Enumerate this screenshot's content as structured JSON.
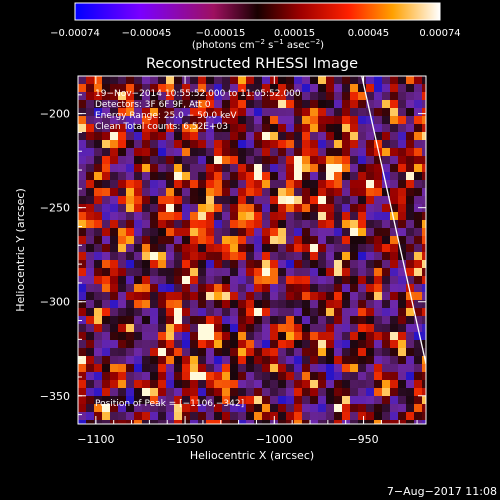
{
  "chart_data": {
    "type": "heatmap",
    "title": "Reconstructed RHESSI Image",
    "xlabel": "Heliocentric X (arcsec)",
    "ylabel": "Heliocentric Y (arcsec)",
    "xlim": [
      -1110,
      -915
    ],
    "ylim": [
      -365,
      -180
    ],
    "x_ticks": [
      -1100,
      -1050,
      -1000,
      -950
    ],
    "x_tick_labels": [
      "−1100",
      "−1050",
      "−1000",
      "−950"
    ],
    "y_ticks": [
      -200,
      -250,
      -300,
      -350
    ],
    "y_tick_labels": [
      "−200",
      "−250",
      "−300",
      "−350"
    ],
    "colorbar": {
      "range": [
        -0.00074,
        0.00074
      ],
      "tick_labels": [
        "−0.00074",
        "−0.00045",
        "−0.00015",
        "0.00015",
        "0.00045",
        "0.00074"
      ],
      "unit_prefix": "(photons cm",
      "unit_exp1": "−2",
      "unit_mid1": " s",
      "unit_exp2": "−1",
      "unit_mid2": " asec",
      "unit_exp3": "−2",
      "unit_suffix": ")"
    },
    "info_lines": [
      "19−Nov−2014 10:55:52.000 to 11:05:52.000",
      "Detectors: 3F 6F 9F, Att 0",
      "Energy Range: 25.0 − 50.0 keV",
      "Clean    Total counts: 6.52E+03"
    ],
    "peak_label": "Position of Peak = [−1106,−342]",
    "sources": [
      {
        "x": -1040,
        "y": -255
      },
      {
        "x": -985,
        "y": -230
      },
      {
        "x": -1035,
        "y": -318
      }
    ],
    "limb": {
      "x1": -951,
      "y1": -180,
      "x2": -915,
      "y2": -333
    }
  },
  "footer": {
    "date": "7−Aug−2017 11:08"
  }
}
